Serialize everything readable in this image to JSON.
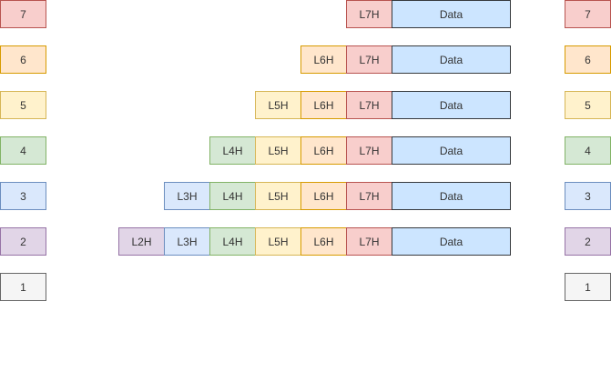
{
  "left_layers": [
    "7",
    "6",
    "5",
    "4",
    "3",
    "2",
    "1"
  ],
  "right_layers": [
    "7",
    "6",
    "5",
    "4",
    "3",
    "2",
    "1"
  ],
  "rows": [
    {
      "headers": [
        "L7H"
      ],
      "data": "Data"
    },
    {
      "headers": [
        "L6H",
        "L7H"
      ],
      "data": "Data"
    },
    {
      "headers": [
        "L5H",
        "L6H",
        "L7H"
      ],
      "data": "Data"
    },
    {
      "headers": [
        "L4H",
        "L5H",
        "L6H",
        "L7H"
      ],
      "data": "Data"
    },
    {
      "headers": [
        "L3H",
        "L4H",
        "L5H",
        "L6H",
        "L7H"
      ],
      "data": "Data"
    },
    {
      "headers": [
        "L2H",
        "L3H",
        "L4H",
        "L5H",
        "L6H",
        "L7H"
      ],
      "data": "Data"
    }
  ],
  "colors": {
    "L7": {
      "fill": "#f8cecc",
      "stroke": "#b85450"
    },
    "L6": {
      "fill": "#ffe6cc",
      "stroke": "#d79b00"
    },
    "L5": {
      "fill": "#fff2cc",
      "stroke": "#d6b656"
    },
    "L4": {
      "fill": "#d5e8d4",
      "stroke": "#82b366"
    },
    "L3": {
      "fill": "#dae8fc",
      "stroke": "#6c8ebf"
    },
    "L2": {
      "fill": "#e1d5e7",
      "stroke": "#9673a6"
    },
    "L1": {
      "fill": "#f5f5f5",
      "stroke": "#666666"
    },
    "data": {
      "fill": "#cce5ff",
      "stroke": "#36393d"
    }
  }
}
